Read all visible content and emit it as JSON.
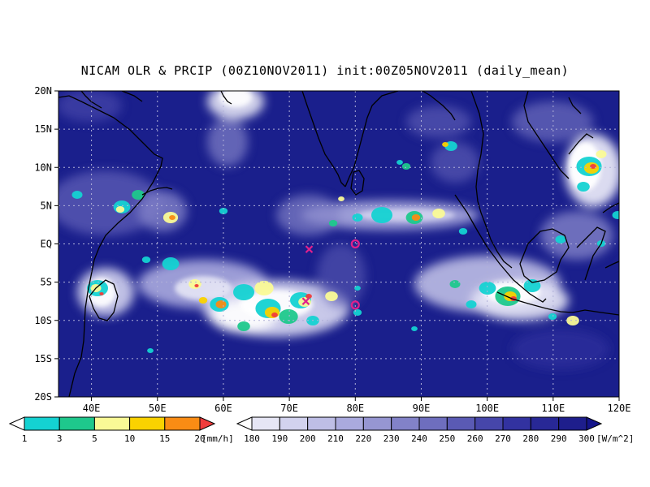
{
  "title": "NICAM OLR & PRCIP (00Z10NOV2011) init:00Z05NOV2011 (daily_mean)",
  "map": {
    "lon_range": [
      35,
      120
    ],
    "lat_range": [
      -20,
      20
    ],
    "lon_ticks": [
      "40E",
      "50E",
      "60E",
      "70E",
      "80E",
      "90E",
      "100E",
      "110E",
      "120E"
    ],
    "lat_ticks": [
      "20N",
      "15N",
      "10N",
      "5N",
      "EQ",
      "5S",
      "10S",
      "15S",
      "20S"
    ],
    "grid": "dotted",
    "colors": {
      "ocean_background": "#1a1f8c",
      "coastline": "#000000",
      "grid": "#b0b0d8"
    },
    "markers": [
      {
        "type": "x",
        "lon": 73,
        "lat": -0.7,
        "color": "#e0208c"
      },
      {
        "type": "x",
        "lon": 72.5,
        "lat": -7.5,
        "color": "#e0208c"
      },
      {
        "type": "circle",
        "lon": 80,
        "lat": 0,
        "color": "#e0208c"
      },
      {
        "type": "circle",
        "lon": 80,
        "lat": -8,
        "color": "#e0208c"
      }
    ]
  },
  "precip_colorbar": {
    "labels": [
      "1",
      "3",
      "5",
      "10",
      "15",
      "20"
    ],
    "unit": "[mm/h]",
    "colors": [
      "#ffffff",
      "#14d2d2",
      "#1ec88c",
      "#fafa96",
      "#fad200",
      "#fa8c14",
      "#f03c3c"
    ]
  },
  "olr_colorbar": {
    "labels": [
      "180",
      "190",
      "200",
      "210",
      "220",
      "230",
      "240",
      "250",
      "260",
      "270",
      "280",
      "290",
      "300"
    ],
    "unit": "[W/m^2]",
    "colors": [
      "#ffffff",
      "#e6e6f5",
      "#d2d2ee",
      "#bebee6",
      "#aaaade",
      "#9696d2",
      "#8282c8",
      "#6e6ebe",
      "#5a5ab4",
      "#4646aa",
      "#3232a0",
      "#282896",
      "#1e1e8c",
      "#14148a"
    ]
  }
}
